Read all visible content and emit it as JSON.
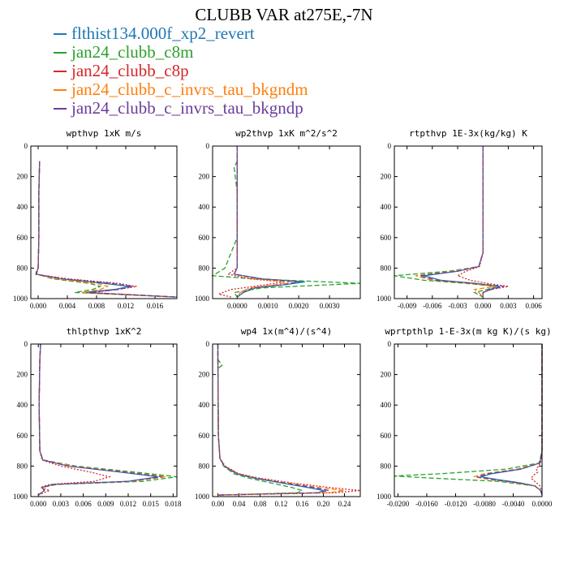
{
  "figure": {
    "title": "CLUBB VAR at275E,-7N"
  },
  "legend": [
    {
      "label": "flthist134.000f_xp2_revert",
      "color": "#1f77b4",
      "dash": "solid"
    },
    {
      "label": "jan24_clubb_c8m",
      "color": "#2ca02c",
      "dash": "dashed"
    },
    {
      "label": "jan24_clubb_c8p",
      "color": "#d62728",
      "dash": "dotted"
    },
    {
      "label": "jan24_clubb_c_invrs_tau_bkgndm",
      "color": "#ff7f0e",
      "dash": "dashed"
    },
    {
      "label": "jan24_clubb_c_invrs_tau_bkgndp",
      "color": "#6a3d9a",
      "dash": "dashed"
    }
  ],
  "chart_data": [
    {
      "type": "line",
      "title": "wpthvp  1xK m/s",
      "xlim": [
        -0.001,
        0.019
      ],
      "ylim": [
        1000,
        0
      ],
      "xticks": [
        "0.000",
        "0.004",
        "0.008",
        "0.012",
        "0.016"
      ],
      "xtick_values": [
        0,
        0.004,
        0.008,
        0.012,
        0.016
      ],
      "yticks": [
        0,
        200,
        400,
        600,
        800,
        1000
      ],
      "series": [
        {
          "y": [
            100,
            300,
            600,
            800,
            840,
            870,
            900,
            920,
            940,
            960,
            990
          ],
          "x": [
            0.0002,
            0.0001,
            0.0001,
            0.0,
            -0.0003,
            0.003,
            0.009,
            0.0125,
            0.0105,
            0.006,
            0.019
          ]
        },
        {
          "y": [
            100,
            300,
            600,
            800,
            840,
            870,
            900,
            920,
            940,
            960,
            990
          ],
          "x": [
            0.0002,
            0.0001,
            0.0001,
            0.0,
            -0.0002,
            0.002,
            0.007,
            0.0085,
            0.0075,
            0.005,
            0.019
          ]
        },
        {
          "y": [
            100,
            300,
            600,
            800,
            840,
            870,
            900,
            920,
            940,
            960,
            990
          ],
          "x": [
            0.0002,
            0.0001,
            0.0001,
            0.0,
            -0.0004,
            0.004,
            0.011,
            0.0135,
            0.011,
            0.007,
            0.019
          ]
        },
        {
          "y": [
            100,
            300,
            600,
            800,
            840,
            870,
            900,
            920,
            940,
            960,
            990
          ],
          "x": [
            0.0002,
            0.0001,
            0.0001,
            0.0,
            -0.0003,
            0.0025,
            0.008,
            0.0095,
            0.0085,
            0.006,
            0.019
          ]
        },
        {
          "y": [
            100,
            300,
            600,
            800,
            840,
            870,
            900,
            920,
            940,
            960,
            990
          ],
          "x": [
            0.0002,
            0.0001,
            0.0001,
            0.0,
            -0.0003,
            0.0035,
            0.01,
            0.013,
            0.011,
            0.007,
            0.019
          ]
        }
      ]
    },
    {
      "type": "line",
      "title": "wp2thvp  1xK m^2/s^2",
      "xlim": [
        -0.0008,
        0.004
      ],
      "ylim": [
        1000,
        0
      ],
      "xticks": [
        "0.0000",
        "0.0010",
        "0.0020",
        "0.0030"
      ],
      "xtick_values": [
        0,
        0.001,
        0.002,
        0.003
      ],
      "yticks": [
        0,
        200,
        400,
        600,
        800,
        1000
      ],
      "series": [
        {
          "y": [
            0,
            100,
            300,
            600,
            800,
            840,
            870,
            890,
            910,
            930,
            960,
            990
          ],
          "x": [
            0,
            0,
            0,
            0,
            0,
            -0.0001,
            0.0008,
            0.0022,
            0.0015,
            0.0006,
            0.0002,
            0.0
          ]
        },
        {
          "y": [
            0,
            100,
            140,
            300,
            600,
            800,
            850,
            870,
            900,
            930,
            960,
            990
          ],
          "x": [
            0,
            0,
            -0.0001,
            0,
            0,
            -0.0004,
            -0.0008,
            0.0005,
            0.004,
            0.0008,
            -0.0001,
            0.0
          ]
        },
        {
          "y": [
            0,
            100,
            300,
            600,
            800,
            840,
            870,
            890,
            910,
            940,
            970,
            990
          ],
          "x": [
            0,
            0,
            0,
            0,
            0,
            -0.0003,
            0.0004,
            0.0015,
            0.0009,
            -0.0002,
            -0.0006,
            -0.0002
          ]
        },
        {
          "y": [
            0,
            100,
            300,
            600,
            800,
            840,
            870,
            890,
            910,
            930,
            960,
            990
          ],
          "x": [
            0,
            0,
            0,
            0,
            0,
            -0.0001,
            0.0006,
            0.0017,
            0.0012,
            0.0004,
            0.0001,
            0.0
          ]
        },
        {
          "y": [
            0,
            100,
            300,
            600,
            800,
            840,
            870,
            890,
            910,
            930,
            960,
            990
          ],
          "x": [
            0,
            0,
            0,
            0,
            0,
            -0.0001,
            0.0008,
            0.002,
            0.0014,
            0.0005,
            0.0002,
            0.0
          ]
        }
      ]
    },
    {
      "type": "line",
      "title": "rtpthvp  1E-3x(kg/kg) K",
      "xlim": [
        -0.0105,
        0.007
      ],
      "ylim": [
        1000,
        0
      ],
      "xticks": [
        "-0.009",
        "-0.006",
        "-0.003",
        "0.000",
        "0.003",
        "0.006"
      ],
      "xtick_values": [
        -0.009,
        -0.006,
        -0.003,
        0,
        0.003,
        0.006
      ],
      "yticks": [
        0,
        200,
        400,
        600,
        800,
        1000
      ],
      "series": [
        {
          "y": [
            0,
            400,
            700,
            790,
            820,
            850,
            880,
            900,
            920,
            940,
            960,
            990
          ],
          "x": [
            0,
            0,
            0,
            -0.0005,
            -0.003,
            -0.007,
            -0.005,
            -0.001,
            0.002,
            0.0008,
            0.0,
            0.0
          ]
        },
        {
          "y": [
            0,
            400,
            700,
            790,
            820,
            850,
            880,
            900,
            920,
            940,
            960,
            990
          ],
          "x": [
            0,
            0,
            0,
            -0.0005,
            -0.004,
            -0.0105,
            -0.007,
            -0.002,
            0.0015,
            0.0005,
            -0.001,
            0.0
          ]
        },
        {
          "y": [
            0,
            400,
            700,
            790,
            820,
            850,
            880,
            900,
            920,
            940,
            960,
            990
          ],
          "x": [
            0,
            0,
            0,
            -0.0004,
            -0.002,
            -0.003,
            -0.0015,
            0.0005,
            0.003,
            0.001,
            0.0,
            0.0
          ]
        },
        {
          "y": [
            0,
            400,
            700,
            790,
            820,
            850,
            880,
            900,
            920,
            940,
            960,
            990
          ],
          "x": [
            0,
            0,
            0,
            -0.0005,
            -0.0035,
            -0.008,
            -0.006,
            -0.0015,
            0.0015,
            -0.001,
            -0.0005,
            0.0
          ]
        },
        {
          "y": [
            0,
            400,
            700,
            790,
            820,
            850,
            880,
            900,
            920,
            940,
            960,
            990
          ],
          "x": [
            0,
            0,
            0,
            -0.0005,
            -0.003,
            -0.0075,
            -0.0055,
            -0.001,
            0.0025,
            0.001,
            0.0,
            0.0
          ]
        }
      ]
    },
    {
      "type": "line",
      "title": "thlpthvp  1xK^2",
      "xlim": [
        -0.001,
        0.0185
      ],
      "ylim": [
        1000,
        0
      ],
      "xticks": [
        "0.000",
        "0.003",
        "0.006",
        "0.009",
        "0.012",
        "0.015",
        "0.018"
      ],
      "xtick_values": [
        0,
        0.003,
        0.006,
        0.009,
        0.012,
        0.015,
        0.018
      ],
      "yticks": [
        0,
        200,
        400,
        600,
        800,
        1000
      ],
      "series": [
        {
          "y": [
            0,
            100,
            400,
            700,
            760,
            800,
            840,
            870,
            900,
            920,
            940,
            960,
            990
          ],
          "x": [
            0.0003,
            0.0002,
            0.0001,
            0.0002,
            0.0006,
            0.004,
            0.011,
            0.016,
            0.012,
            0.002,
            0.0005,
            0.0008,
            0.0
          ]
        },
        {
          "y": [
            0,
            100,
            400,
            700,
            760,
            800,
            840,
            870,
            900,
            920,
            940,
            960,
            990
          ],
          "x": [
            0.0003,
            0.0002,
            0.0001,
            0.0002,
            0.0006,
            0.005,
            0.013,
            0.0185,
            0.014,
            0.0025,
            0.0005,
            0.0008,
            0.0
          ]
        },
        {
          "y": [
            0,
            100,
            400,
            700,
            760,
            800,
            840,
            870,
            900,
            920,
            940,
            960,
            990
          ],
          "x": [
            0.0003,
            0.0002,
            0.0001,
            0.0002,
            0.0005,
            0.003,
            0.007,
            0.0095,
            0.0075,
            0.0015,
            0.0003,
            0.0015,
            0.0
          ]
        },
        {
          "y": [
            0,
            100,
            400,
            700,
            760,
            800,
            840,
            870,
            900,
            920,
            940,
            960,
            990
          ],
          "x": [
            0.0003,
            0.0002,
            0.0001,
            0.0002,
            0.0006,
            0.0045,
            0.012,
            0.017,
            0.0125,
            0.002,
            0.0005,
            0.0008,
            0.0
          ]
        },
        {
          "y": [
            0,
            100,
            400,
            700,
            760,
            800,
            840,
            870,
            900,
            920,
            940,
            960,
            990
          ],
          "x": [
            0.0003,
            0.0002,
            0.0001,
            0.0002,
            0.0006,
            0.004,
            0.0115,
            0.0165,
            0.012,
            0.002,
            0.0005,
            0.0008,
            0.0
          ]
        }
      ]
    },
    {
      "type": "line",
      "title": "wp4  1x(m^4)/(s^4)",
      "xlim": [
        -0.01,
        0.27
      ],
      "ylim": [
        1000,
        0
      ],
      "xticks": [
        "0.00",
        "0.04",
        "0.08",
        "0.12",
        "0.16",
        "0.20",
        "0.24"
      ],
      "xtick_values": [
        0,
        0.04,
        0.08,
        0.12,
        0.16,
        0.2,
        0.24
      ],
      "yticks": [
        0,
        200,
        400,
        600,
        800,
        1000
      ],
      "series": [
        {
          "y": [
            0,
            100,
            300,
            600,
            750,
            800,
            850,
            880,
            910,
            940,
            960,
            975,
            990
          ],
          "x": [
            0.0,
            0.0,
            0.0005,
            0.001,
            0.004,
            0.012,
            0.035,
            0.07,
            0.12,
            0.17,
            0.2,
            0.19,
            0.0
          ]
        },
        {
          "y": [
            0,
            100,
            140,
            160,
            300,
            600,
            750,
            800,
            850,
            880,
            910,
            940,
            960,
            975,
            990
          ],
          "x": [
            0.0,
            0.0,
            0.008,
            0.0,
            0.0005,
            0.001,
            0.004,
            0.011,
            0.03,
            0.06,
            0.1,
            0.14,
            0.16,
            0.15,
            0.0
          ]
        },
        {
          "y": [
            0,
            100,
            300,
            600,
            750,
            800,
            850,
            880,
            910,
            940,
            960,
            975,
            990
          ],
          "x": [
            0.0,
            0.0,
            0.0005,
            0.001,
            0.004,
            0.014,
            0.04,
            0.08,
            0.14,
            0.21,
            0.27,
            0.22,
            0.0
          ]
        },
        {
          "y": [
            0,
            100,
            300,
            600,
            750,
            800,
            850,
            880,
            910,
            940,
            960,
            975,
            990
          ],
          "x": [
            0.0,
            0.0,
            0.0005,
            0.001,
            0.004,
            0.013,
            0.038,
            0.075,
            0.13,
            0.19,
            0.24,
            0.21,
            0.0
          ]
        },
        {
          "y": [
            0,
            100,
            300,
            600,
            750,
            800,
            850,
            880,
            910,
            940,
            960,
            975,
            990
          ],
          "x": [
            0.0,
            0.0,
            0.0005,
            0.001,
            0.004,
            0.012,
            0.036,
            0.072,
            0.125,
            0.18,
            0.21,
            0.19,
            0.0
          ]
        }
      ]
    },
    {
      "type": "line",
      "title": "wprtpthlp  1-E-3x(m kg K)/(s kg)",
      "xlim": [
        -0.0205,
        0.0
      ],
      "ylim": [
        1000,
        0
      ],
      "xticks": [
        "-0.0200",
        "-0.0160",
        "-0.0120",
        "-0.0080",
        "-0.0040",
        "0.0000"
      ],
      "xtick_values": [
        -0.02,
        -0.016,
        -0.012,
        -0.008,
        -0.004,
        0.0
      ],
      "yticks": [
        0,
        200,
        400,
        600,
        800,
        1000
      ],
      "series": [
        {
          "y": [
            0,
            400,
            700,
            780,
            820,
            850,
            870,
            890,
            910,
            930,
            960,
            990
          ],
          "x": [
            0,
            0,
            0,
            -0.0003,
            -0.003,
            -0.007,
            -0.0085,
            -0.006,
            -0.003,
            -0.001,
            -0.0002,
            0.0
          ]
        },
        {
          "y": [
            0,
            400,
            700,
            780,
            820,
            850,
            865,
            880,
            900,
            930,
            960,
            990
          ],
          "x": [
            0,
            0,
            0,
            -0.0004,
            -0.005,
            -0.014,
            -0.0205,
            -0.015,
            -0.006,
            -0.001,
            -0.0002,
            0.0
          ]
        },
        {
          "y": [
            0,
            400,
            700,
            780,
            800,
            820,
            840,
            860,
            880,
            900,
            930,
            960,
            990
          ],
          "x": [
            0,
            0,
            0,
            -0.0002,
            -0.0005,
            -0.0008,
            -0.0006,
            -0.0012,
            -0.0015,
            -0.001,
            -0.0003,
            -0.0001,
            0.0
          ]
        },
        {
          "y": [
            0,
            400,
            700,
            780,
            820,
            850,
            870,
            890,
            910,
            930,
            960,
            990
          ],
          "x": [
            0,
            0,
            0,
            -0.0003,
            -0.0035,
            -0.008,
            -0.0095,
            -0.007,
            -0.0035,
            -0.001,
            -0.0002,
            0.0
          ]
        },
        {
          "y": [
            0,
            400,
            700,
            780,
            820,
            850,
            870,
            890,
            910,
            930,
            960,
            990
          ],
          "x": [
            0,
            0,
            0,
            -0.0003,
            -0.003,
            -0.0075,
            -0.009,
            -0.0065,
            -0.0032,
            -0.001,
            -0.0002,
            0.0
          ]
        }
      ]
    }
  ]
}
